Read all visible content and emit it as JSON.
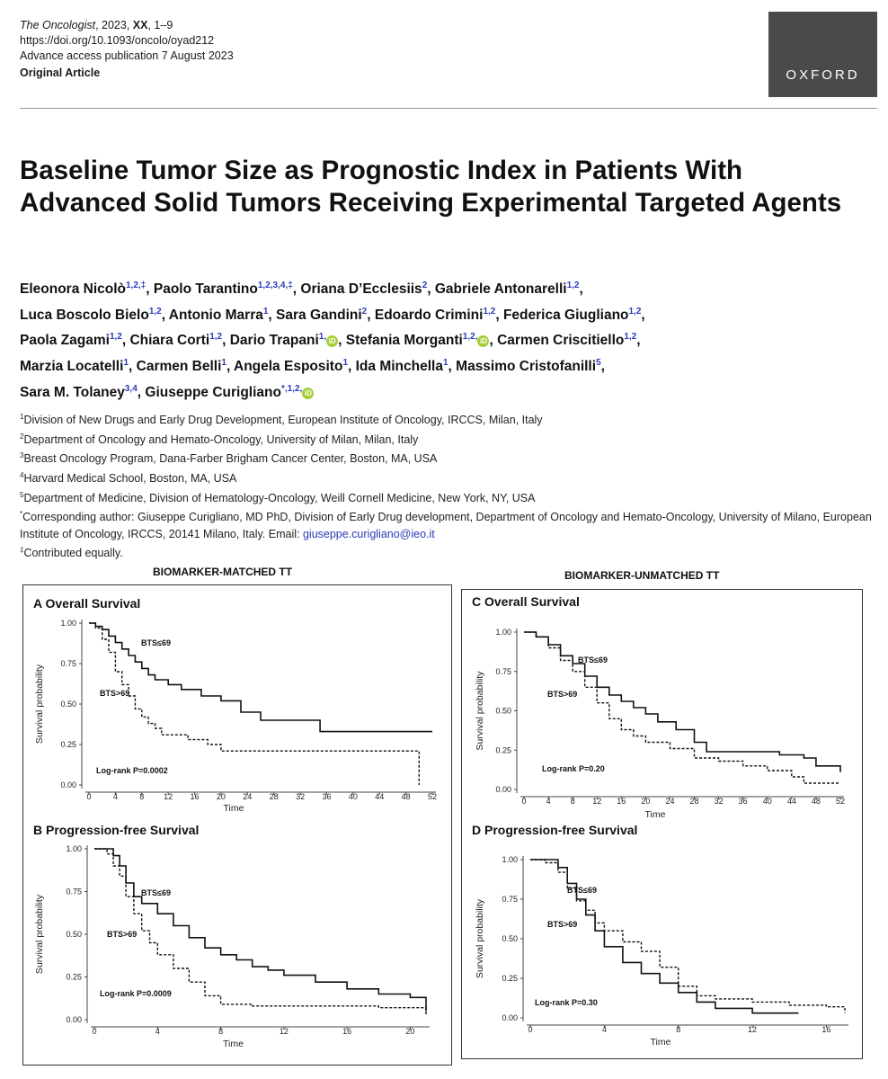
{
  "header": {
    "journal": "The Oncologist",
    "year_vol": ", 2023, ",
    "vol": "XX",
    "pages": ", 1–9",
    "doi": "https://doi.org/10.1093/oncolo/oyad212",
    "advance": "Advance access publication 7 August 2023",
    "article_type": "Original Article",
    "publisher": "OXFORD"
  },
  "title": "Baseline Tumor Size as Prognostic Index in Patients With Advanced Solid Tumors Receiving Experimental Targeted Agents",
  "authors": [
    {
      "name": "Eleonora Nicolò",
      "sup": "1,2,‡",
      "orcid": false
    },
    {
      "name": "Paolo Tarantino",
      "sup": "1,2,3,4,‡",
      "orcid": false
    },
    {
      "name": "Oriana D’Ecclesiis",
      "sup": "2",
      "orcid": false
    },
    {
      "name": "Gabriele Antonarelli",
      "sup": "1,2",
      "orcid": false
    },
    {
      "name": "Luca Boscolo Bielo",
      "sup": "1,2",
      "orcid": false
    },
    {
      "name": "Antonio Marra",
      "sup": "1",
      "orcid": false
    },
    {
      "name": "Sara Gandini",
      "sup": "2",
      "orcid": false
    },
    {
      "name": "Edoardo Crimini",
      "sup": "1,2",
      "orcid": false
    },
    {
      "name": "Federica Giugliano",
      "sup": "1,2",
      "orcid": false
    },
    {
      "name": "Paola Zagami",
      "sup": "1,2",
      "orcid": false
    },
    {
      "name": "Chiara Corti",
      "sup": "1,2",
      "orcid": false
    },
    {
      "name": "Dario Trapani",
      "sup": "1,",
      "orcid": true
    },
    {
      "name": "Stefania Morganti",
      "sup": "1,2,",
      "orcid": true
    },
    {
      "name": "Carmen Criscitiello",
      "sup": "1,2",
      "orcid": false
    },
    {
      "name": "Marzia Locatelli",
      "sup": "1",
      "orcid": false
    },
    {
      "name": "Carmen Belli",
      "sup": "1",
      "orcid": false
    },
    {
      "name": "Angela Esposito",
      "sup": "1",
      "orcid": false
    },
    {
      "name": "Ida Minchella",
      "sup": "1",
      "orcid": false
    },
    {
      "name": "Massimo Cristofanilli",
      "sup": "5",
      "orcid": false
    },
    {
      "name": "Sara M. Tolaney",
      "sup": "3,4",
      "orcid": false
    },
    {
      "name": "Giuseppe Curigliano",
      "sup": "*,1,2,",
      "orcid": true
    }
  ],
  "affiliations": [
    {
      "sup": "1",
      "text": "Division of New Drugs and Early Drug Development, European Institute of Oncology, IRCCS, Milan, Italy"
    },
    {
      "sup": "2",
      "text": "Department of Oncology and Hemato-Oncology, University of Milan, Milan, Italy"
    },
    {
      "sup": "3",
      "text": "Breast Oncology Program, Dana-Farber Brigham Cancer Center, Boston, MA, USA"
    },
    {
      "sup": "4",
      "text": "Harvard Medical School, Boston, MA, USA"
    },
    {
      "sup": "5",
      "text": "Department of Medicine, Division of Hematology-Oncology, Weill Cornell Medicine, New York, NY, USA"
    }
  ],
  "corresponding": {
    "sup": "*",
    "text": "Corresponding author: Giuseppe Curigliano, MD PhD, Division of Early Drug development, Department of Oncology and Hemato-Oncology, University of Milano, European Institute of Oncology, IRCCS, 20141 Milano, Italy. Email: ",
    "email": "giuseppe.curigliano@ieo.it"
  },
  "contributed": {
    "sup": "‡",
    "text": "Contributed equally."
  },
  "figure": {
    "left_heading": "BIOMARKER-MATCHED TT",
    "right_heading": "BIOMARKER-UNMATCHED TT"
  },
  "chart_data": [
    {
      "type": "line",
      "title": "A Overall Survival",
      "xlabel": "Time",
      "ylabel": "Survival probability",
      "xlim": [
        0,
        52
      ],
      "xticks": [
        0,
        4,
        8,
        12,
        16,
        20,
        24,
        28,
        32,
        36,
        40,
        44,
        48,
        52
      ],
      "ylim": [
        0,
        1
      ],
      "yticks": [
        "0.00",
        "0.25",
        "0.50",
        "0.75",
        "1.00"
      ],
      "annotation": "Log-rank P=0.0002",
      "series": [
        {
          "name": "BTS≤69",
          "style": "solid",
          "points": [
            [
              0,
              1
            ],
            [
              1,
              0.98
            ],
            [
              2,
              0.96
            ],
            [
              3,
              0.92
            ],
            [
              4,
              0.88
            ],
            [
              5,
              0.84
            ],
            [
              6,
              0.8
            ],
            [
              7,
              0.76
            ],
            [
              8,
              0.72
            ],
            [
              9,
              0.68
            ],
            [
              10,
              0.65
            ],
            [
              12,
              0.62
            ],
            [
              14,
              0.59
            ],
            [
              17,
              0.55
            ],
            [
              20,
              0.52
            ],
            [
              23,
              0.45
            ],
            [
              26,
              0.4
            ],
            [
              30,
              0.4
            ],
            [
              35,
              0.33
            ],
            [
              52,
              0.33
            ]
          ]
        },
        {
          "name": "BTS>69",
          "style": "dashed",
          "points": [
            [
              0,
              1
            ],
            [
              1,
              0.97
            ],
            [
              2,
              0.9
            ],
            [
              3,
              0.82
            ],
            [
              4,
              0.7
            ],
            [
              5,
              0.62
            ],
            [
              6,
              0.55
            ],
            [
              7,
              0.47
            ],
            [
              8,
              0.42
            ],
            [
              9,
              0.38
            ],
            [
              10,
              0.35
            ],
            [
              11,
              0.31
            ],
            [
              15,
              0.28
            ],
            [
              18,
              0.25
            ],
            [
              20,
              0.21
            ],
            [
              50,
              0.21
            ],
            [
              50,
              0.0
            ]
          ]
        }
      ]
    },
    {
      "type": "line",
      "title": "B Progression-free Survival",
      "xlabel": "Time",
      "ylabel": "Survival probability",
      "xlim": [
        0,
        21
      ],
      "xticks": [
        0,
        4,
        8,
        12,
        16,
        20
      ],
      "ylim": [
        0,
        1
      ],
      "yticks": [
        "0.00",
        "0.25",
        "0.50",
        "0.75",
        "1.00"
      ],
      "annotation": "Log-rank P=0.0009",
      "series": [
        {
          "name": "BTS≤69",
          "style": "solid",
          "points": [
            [
              0,
              1
            ],
            [
              0.8,
              1
            ],
            [
              1.2,
              0.96
            ],
            [
              1.6,
              0.9
            ],
            [
              2,
              0.8
            ],
            [
              2.5,
              0.72
            ],
            [
              3,
              0.68
            ],
            [
              4,
              0.62
            ],
            [
              5,
              0.55
            ],
            [
              6,
              0.48
            ],
            [
              7,
              0.42
            ],
            [
              8,
              0.38
            ],
            [
              9,
              0.35
            ],
            [
              10,
              0.31
            ],
            [
              11,
              0.29
            ],
            [
              12,
              0.26
            ],
            [
              14,
              0.22
            ],
            [
              16,
              0.18
            ],
            [
              18,
              0.15
            ],
            [
              20,
              0.13
            ],
            [
              21,
              0.11
            ],
            [
              21,
              0.05
            ]
          ]
        },
        {
          "name": "BTS>69",
          "style": "dashed",
          "points": [
            [
              0,
              1
            ],
            [
              0.8,
              0.97
            ],
            [
              1.2,
              0.9
            ],
            [
              1.6,
              0.84
            ],
            [
              2,
              0.72
            ],
            [
              2.5,
              0.62
            ],
            [
              3,
              0.52
            ],
            [
              3.5,
              0.45
            ],
            [
              4,
              0.38
            ],
            [
              5,
              0.3
            ],
            [
              6,
              0.22
            ],
            [
              7,
              0.14
            ],
            [
              8,
              0.09
            ],
            [
              10,
              0.08
            ],
            [
              14,
              0.08
            ],
            [
              18,
              0.07
            ],
            [
              21,
              0.03
            ]
          ]
        }
      ]
    },
    {
      "type": "line",
      "title": "C Overall Survival",
      "xlabel": "Time",
      "ylabel": "Survival probability",
      "xlim": [
        0,
        52
      ],
      "xticks": [
        0,
        4,
        8,
        12,
        16,
        20,
        24,
        28,
        32,
        36,
        40,
        44,
        48,
        52
      ],
      "ylim": [
        0,
        1
      ],
      "yticks": [
        "0.00",
        "0.25",
        "0.50",
        "0.75",
        "1.00"
      ],
      "annotation": "Log-rank P=0.20",
      "series": [
        {
          "name": "BTS≤69",
          "style": "solid",
          "points": [
            [
              0,
              1
            ],
            [
              2,
              0.97
            ],
            [
              4,
              0.92
            ],
            [
              6,
              0.85
            ],
            [
              8,
              0.8
            ],
            [
              10,
              0.72
            ],
            [
              12,
              0.65
            ],
            [
              14,
              0.6
            ],
            [
              16,
              0.56
            ],
            [
              18,
              0.52
            ],
            [
              20,
              0.48
            ],
            [
              22,
              0.43
            ],
            [
              25,
              0.38
            ],
            [
              28,
              0.3
            ],
            [
              30,
              0.24
            ],
            [
              38,
              0.24
            ],
            [
              42,
              0.22
            ],
            [
              46,
              0.2
            ],
            [
              48,
              0.15
            ],
            [
              52,
              0.11
            ]
          ]
        },
        {
          "name": "BTS>69",
          "style": "dashed",
          "points": [
            [
              0,
              1
            ],
            [
              2,
              0.97
            ],
            [
              4,
              0.9
            ],
            [
              6,
              0.82
            ],
            [
              8,
              0.75
            ],
            [
              10,
              0.65
            ],
            [
              12,
              0.55
            ],
            [
              14,
              0.45
            ],
            [
              16,
              0.38
            ],
            [
              18,
              0.34
            ],
            [
              20,
              0.3
            ],
            [
              22,
              0.3
            ],
            [
              24,
              0.26
            ],
            [
              28,
              0.2
            ],
            [
              32,
              0.18
            ],
            [
              36,
              0.15
            ],
            [
              40,
              0.12
            ],
            [
              44,
              0.08
            ],
            [
              46,
              0.04
            ],
            [
              52,
              0.04
            ]
          ]
        }
      ]
    },
    {
      "type": "line",
      "title": "D Progression-free Survival",
      "xlabel": "Time",
      "ylabel": "Survival probability",
      "xlim": [
        0,
        17
      ],
      "xticks": [
        0,
        4,
        8,
        12,
        16
      ],
      "ylim": [
        0,
        1
      ],
      "yticks": [
        "0.00",
        "0.25",
        "0.50",
        "0.75",
        "1.00"
      ],
      "annotation": "Log-rank P=0.30",
      "series": [
        {
          "name": "BTS≤69",
          "style": "solid",
          "points": [
            [
              0,
              1
            ],
            [
              0.8,
              1
            ],
            [
              1.5,
              0.95
            ],
            [
              2,
              0.85
            ],
            [
              2.5,
              0.75
            ],
            [
              3,
              0.65
            ],
            [
              3.5,
              0.55
            ],
            [
              4,
              0.45
            ],
            [
              5,
              0.35
            ],
            [
              6,
              0.28
            ],
            [
              7,
              0.22
            ],
            [
              8,
              0.16
            ],
            [
              9,
              0.1
            ],
            [
              10,
              0.06
            ],
            [
              12,
              0.03
            ],
            [
              14.5,
              0.03
            ]
          ]
        },
        {
          "name": "BTS>69",
          "style": "dashed",
          "points": [
            [
              0,
              1
            ],
            [
              0.8,
              0.98
            ],
            [
              1.5,
              0.92
            ],
            [
              2,
              0.82
            ],
            [
              2.5,
              0.74
            ],
            [
              3,
              0.68
            ],
            [
              3.5,
              0.6
            ],
            [
              4,
              0.55
            ],
            [
              5,
              0.48
            ],
            [
              6,
              0.42
            ],
            [
              7,
              0.32
            ],
            [
              8,
              0.2
            ],
            [
              9,
              0.14
            ],
            [
              10,
              0.12
            ],
            [
              12,
              0.1
            ],
            [
              14,
              0.08
            ],
            [
              16,
              0.07
            ],
            [
              17,
              0.03
            ]
          ]
        }
      ]
    }
  ]
}
